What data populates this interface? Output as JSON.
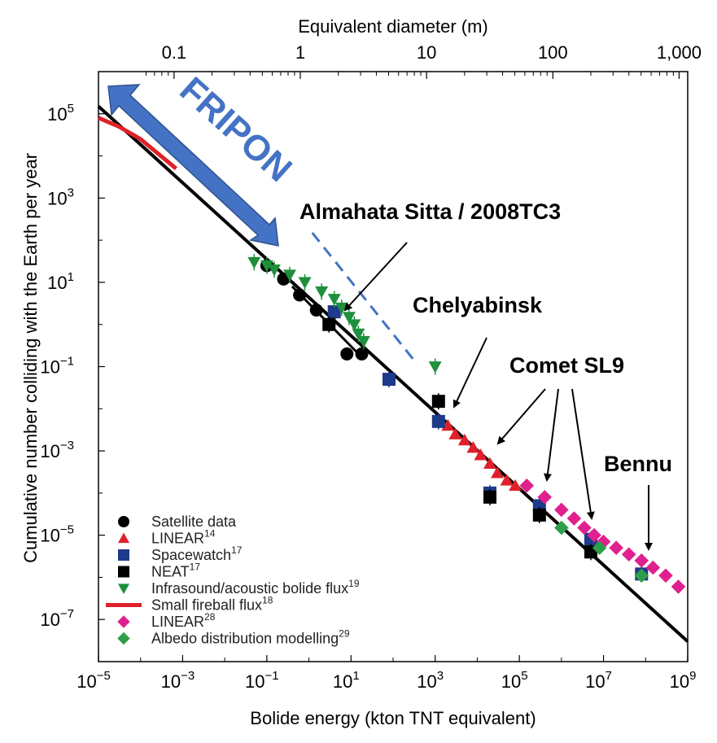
{
  "chart_data": {
    "type": "scatter",
    "scale": "log-log",
    "xlabel": "Bolide energy (kton TNT equivalent)",
    "ylabel": "Cumulative number colliding with the Earth per year",
    "top_axis_label": "Equivalent diameter (m)",
    "xlim": [
      1e-05,
      1000000000.0
    ],
    "ylim": [
      1e-08,
      1000000.0
    ],
    "x_ticks": [
      {
        "v": 1e-05,
        "b": "10",
        "e": "−5"
      },
      {
        "v": 0.001,
        "b": "10",
        "e": "−3"
      },
      {
        "v": 0.1,
        "b": "10",
        "e": "−1"
      },
      {
        "v": 10.0,
        "b": "10",
        "e": "1"
      },
      {
        "v": 1000.0,
        "b": "10",
        "e": "3"
      },
      {
        "v": 100000.0,
        "b": "10",
        "e": "5"
      },
      {
        "v": 10000000.0,
        "b": "10",
        "e": "7"
      },
      {
        "v": 1000000000.0,
        "b": "10",
        "e": "9"
      }
    ],
    "y_ticks": [
      {
        "v": 100000.0,
        "b": "10",
        "e": "5"
      },
      {
        "v": 1000.0,
        "b": "10",
        "e": "3"
      },
      {
        "v": 10.0,
        "b": "10",
        "e": "1"
      },
      {
        "v": 0.1,
        "b": "10",
        "e": "−1"
      },
      {
        "v": 0.001,
        "b": "10",
        "e": "−3"
      },
      {
        "v": 1e-05,
        "b": "10",
        "e": "−5"
      },
      {
        "v": 1e-07,
        "b": "10",
        "e": "−7"
      }
    ],
    "top_ticks": [
      {
        "energy": 0.000625,
        "label": "0.1"
      },
      {
        "energy": 0.625,
        "label": "1"
      },
      {
        "energy": 625,
        "label": "10"
      },
      {
        "energy": 625000,
        "label": "100"
      },
      {
        "energy": 625000000,
        "label": "1,000"
      }
    ],
    "fit_line": {
      "x": [
        1e-05,
        1000000000.0
      ],
      "y": [
        150000.0,
        3e-08
      ]
    },
    "fripon_extension": {
      "x": [
        1.2,
        300
      ],
      "y": [
        150,
        0.15
      ]
    },
    "series": [
      {
        "name": "Satellite data",
        "marker": "circle",
        "color": "#000000",
        "x": [
          0.1,
          0.25,
          0.6,
          1.5,
          3,
          8,
          18
        ],
        "y": [
          25,
          12,
          5,
          2.2,
          1,
          0.2,
          0.2
        ]
      },
      {
        "name": "LINEAR",
        "sup": "14",
        "marker": "triangle-up",
        "color": "#e0202a",
        "x": [
          2000,
          3000,
          5000,
          8000,
          12000,
          20000,
          30000,
          50000,
          80000
        ],
        "y": [
          0.004,
          0.0025,
          0.0018,
          0.0012,
          0.0008,
          0.0005,
          0.0003,
          0.0002,
          0.00015
        ]
      },
      {
        "name": "Spacewatch",
        "sup": "17",
        "marker": "square",
        "color": "#1e3a8a",
        "x": [
          4,
          80,
          1200,
          20000,
          300000,
          5000000,
          80000000
        ],
        "y": [
          2,
          0.05,
          0.005,
          0.0001,
          5e-05,
          8e-06,
          1.2e-06
        ]
      },
      {
        "name": "NEAT",
        "sup": "17",
        "marker": "square",
        "color": "#000000",
        "x": [
          3,
          1200,
          20000,
          300000,
          5000000
        ],
        "y": [
          1,
          0.015,
          8e-05,
          3e-05,
          4e-06
        ]
      },
      {
        "name": "Infrasound/acoustic bolide flux",
        "sup": "19",
        "marker": "triangle-down",
        "color": "#1e8f3c",
        "x": [
          0.05,
          0.1,
          0.15,
          0.35,
          0.8,
          2,
          4,
          6,
          9,
          12,
          15,
          20,
          1000
        ],
        "y": [
          30,
          25,
          20,
          15,
          10,
          6,
          4,
          2.5,
          1.5,
          1,
          0.6,
          0.4,
          0.1
        ]
      },
      {
        "name": "Small fireball flux",
        "sup": "18",
        "marker": "line",
        "color": "#e0202a",
        "x": [
          1e-05,
          3e-05,
          0.0001,
          0.0007
        ],
        "y": [
          80000,
          50000,
          25000,
          5000
        ]
      },
      {
        "name": "LINEAR",
        "sup": "28",
        "marker": "diamond",
        "color": "#e0208f",
        "x": [
          150000,
          400000,
          1000000,
          2000000,
          3500000,
          6000000,
          10000000,
          20000000,
          40000000,
          80000000,
          150000000,
          300000000,
          600000000
        ],
        "y": [
          0.00015,
          8e-05,
          4e-05,
          2.5e-05,
          1.5e-05,
          1e-05,
          7e-06,
          5e-06,
          3.5e-06,
          2.5e-06,
          1.7e-06,
          1.1e-06,
          6e-07
        ]
      },
      {
        "name": "Albedo distribution modelling",
        "sup": "29",
        "marker": "diamond",
        "color": "#2e9e4a",
        "x": [
          1000000,
          8000000,
          80000000
        ],
        "y": [
          1.5e-05,
          5e-06,
          1.1e-06
        ]
      }
    ],
    "annotations": [
      {
        "text": "FRIPON",
        "kind": "label"
      },
      {
        "text": "Almahata Sitta / 2008TC3",
        "kind": "label"
      },
      {
        "text": "Chelyabinsk",
        "kind": "label"
      },
      {
        "text": "Comet SL9",
        "kind": "label"
      },
      {
        "text": "Bennu",
        "kind": "label"
      }
    ]
  }
}
